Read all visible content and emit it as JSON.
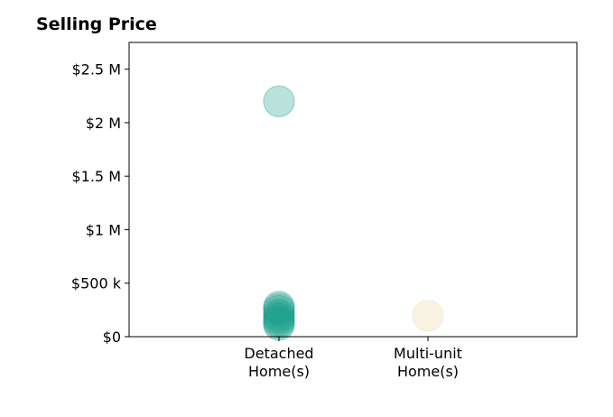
{
  "chart_data": {
    "type": "scatter",
    "title": "Selling Price",
    "xlabel": "",
    "ylabel": "",
    "categories": [
      "Detached\nHome(s)",
      "Multi-unit\nHome(s)"
    ],
    "ylim": [
      0,
      2750000
    ],
    "y_ticks": [
      {
        "value": 0,
        "label": "$0"
      },
      {
        "value": 500000,
        "label": "$500 k"
      },
      {
        "value": 1000000,
        "label": "$1 M"
      },
      {
        "value": 1500000,
        "label": "$1.5 M"
      },
      {
        "value": 2000000,
        "label": "$2 M"
      },
      {
        "value": 2500000,
        "label": "$2.5 M"
      }
    ],
    "grid": false,
    "series": [
      {
        "category": "Detached\nHome(s)",
        "color": "#1b9e8a",
        "values": [
          2200000,
          280000,
          260000,
          240000,
          210000,
          190000,
          170000,
          150000,
          130000,
          110000
        ]
      },
      {
        "category": "Multi-unit\nHome(s)",
        "color": "#f0d9a8",
        "values": [
          195000
        ]
      }
    ]
  }
}
